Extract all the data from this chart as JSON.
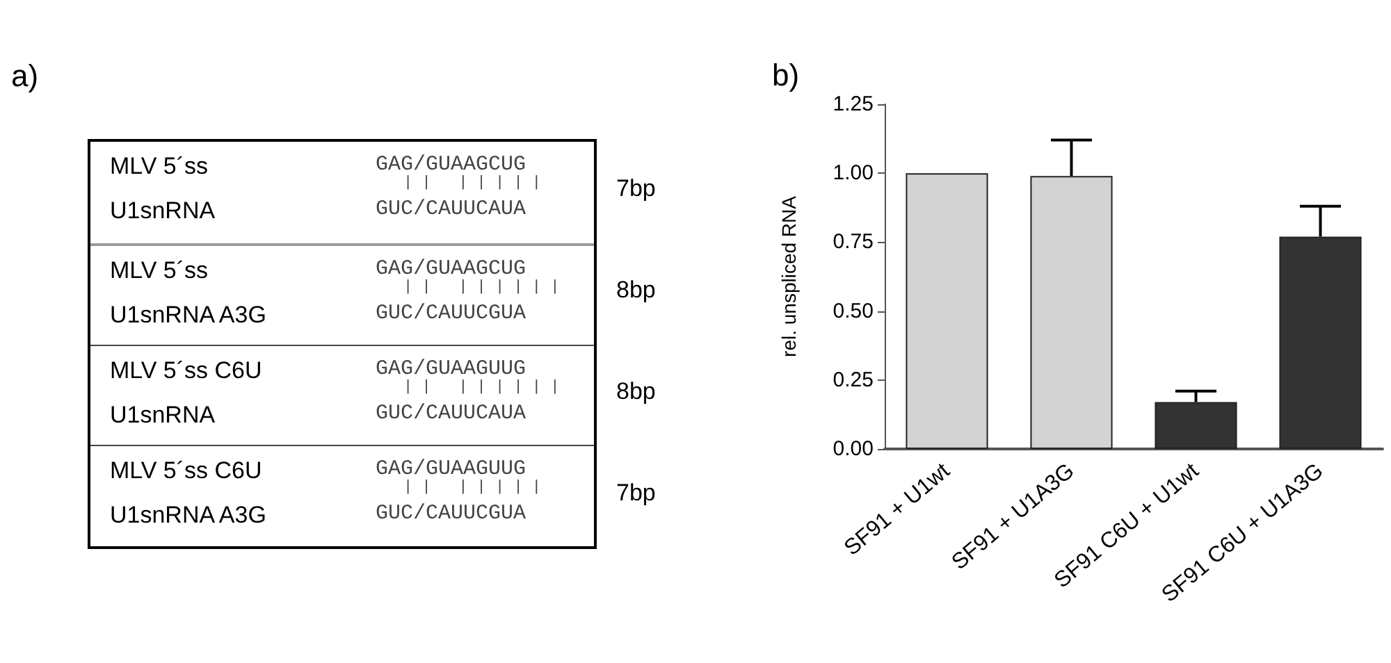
{
  "chart_data": [
    {
      "type": "other",
      "title": "a)",
      "annotations": [
        "MLV 5´ss",
        "GAG/GUAAGCUG",
        "| |   | | | | |",
        "U1snRNA",
        "GUC/CAUUCAUA",
        "7bp",
        "MLV 5´ss",
        "GAG/GUAAGCUG",
        "| |   | | | | | |",
        "U1snRNA  A3G",
        "GUC/CAUUCGUA",
        "8bp",
        "MLV 5´ss C6U",
        "GAG/GUAAGUUG",
        "| |   | | | | | |",
        "U1snRNA",
        "GUC/CAUUCAUA",
        "8bp",
        "MLV 5´ss C6U",
        "GAG/GUAAGUUG",
        "| |   | | | | |",
        "U1snRNA  A3G",
        "GUC/CAUUCGUA",
        "7bp"
      ]
    },
    {
      "type": "bar",
      "title": "b)",
      "ylabel": "rel. unspliced RNA",
      "categories": [
        "SF91 + U1wt",
        "SF91 + U1A3G",
        "SF91 C6U + U1wt",
        "SF91 C6U + U1A3G"
      ],
      "values": [
        1.0,
        0.99,
        0.17,
        0.77
      ],
      "colors": [
        "#d3d3d3",
        "#d3d3d3",
        "#333333",
        "#333333"
      ],
      "errors": [
        null,
        [
          0.99,
          1.12
        ],
        [
          0.17,
          0.21
        ],
        [
          0.77,
          0.88
        ]
      ],
      "ylim": [
        0,
        1.25
      ],
      "yticks": [
        {
          "value": 0,
          "label": "0.00"
        },
        0.25,
        {
          "value": 0.5,
          "label": "0.50"
        },
        0.75,
        {
          "value": 1,
          "label": "1.00"
        },
        1.25
      ],
      "grid": false
    }
  ]
}
